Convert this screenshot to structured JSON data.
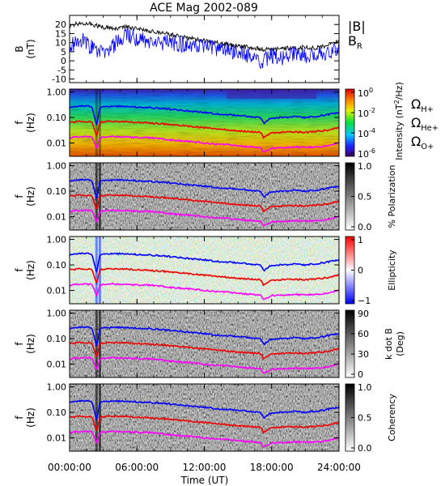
{
  "title": "ACE Mag 2002-089",
  "x_axis": {
    "label": "Time (UT)",
    "tick_labels": [
      "00:00:00",
      "06:00:00",
      "12:00:00",
      "18:00:00",
      "24:00:00"
    ],
    "tick_hours": [
      0,
      6,
      12,
      18,
      24
    ],
    "range_hours": [
      0,
      24
    ]
  },
  "chart_data": [
    {
      "type": "line",
      "ylabel_top": "B",
      "ylabel_bottom": "(nT)",
      "ylim": [
        -12,
        25
      ],
      "y_ticks": [
        20,
        15,
        10,
        5,
        0,
        -5,
        -10
      ],
      "y_tick_labels": [
        "20",
        "15",
        "10",
        "5",
        "0",
        "-5",
        "-10"
      ],
      "legend": [
        {
          "text": "|B|",
          "color": "#000000"
        },
        {
          "text": "B",
          "sub": "R",
          "color": "#0000ff"
        }
      ],
      "series": [
        {
          "name": "|B|",
          "color": "#000000",
          "x": [
            0,
            1,
            2,
            3,
            4,
            5,
            6,
            7,
            8,
            9,
            10,
            11,
            12,
            13,
            14,
            15,
            16,
            17,
            18,
            19,
            20,
            21,
            22,
            23,
            24
          ],
          "y": [
            19,
            21,
            20,
            18.5,
            18,
            18.5,
            17.5,
            16.5,
            15.5,
            14.5,
            13,
            12,
            11,
            10,
            9,
            8,
            7.5,
            6.5,
            6.5,
            7,
            7,
            7.5,
            7,
            8.5,
            11
          ]
        },
        {
          "name": "B_R",
          "color": "#0000ff",
          "x": [
            0,
            1,
            2,
            3,
            4,
            5,
            6,
            7,
            8,
            9,
            10,
            11,
            12,
            13,
            14,
            15,
            16,
            17,
            18,
            19,
            20,
            21,
            22,
            23,
            24
          ],
          "y": [
            8,
            12,
            7,
            4,
            9,
            14,
            12,
            11,
            10,
            10,
            9,
            8,
            8,
            7,
            6,
            5,
            3,
            -1,
            3,
            2,
            4,
            3,
            2,
            4,
            8
          ]
        }
      ]
    },
    {
      "type": "heatmap",
      "ylabel_top": "f",
      "ylabel_bottom": "(Hz)",
      "y_scale": "log",
      "ylim": [
        0.003,
        1.3
      ],
      "y_ticks": [
        1.0,
        0.1,
        0.01
      ],
      "y_tick_labels": [
        "1.00",
        "0.10",
        "0.01"
      ],
      "colorbar": {
        "label": "Intensity (nT²/Hz)",
        "label_parts": [
          "Intensity",
          "(nT",
          "2",
          "/Hz)"
        ],
        "scale": "log",
        "tick_labels": [
          {
            "base": "10",
            "exp": "0"
          },
          {
            "base": "10",
            "exp": "-2"
          },
          {
            "base": "10",
            "exp": "-4"
          },
          {
            "base": "10",
            "exp": "-6"
          }
        ],
        "colormap": "rainbow"
      },
      "legend": [
        {
          "text": "Ω",
          "sub": "H+",
          "color": "#0000ff"
        },
        {
          "text": "Ω",
          "sub": "He+",
          "color": "#ee0000"
        },
        {
          "text": "Ω",
          "sub": "O+",
          "color": "#ff00ff"
        }
      ]
    },
    {
      "type": "heatmap",
      "ylabel_top": "f",
      "ylabel_bottom": "(Hz)",
      "y_scale": "log",
      "ylim": [
        0.003,
        1.3
      ],
      "y_ticks": [
        1.0,
        0.1,
        0.01
      ],
      "y_tick_labels": [
        "1.00",
        "0.10",
        "0.01"
      ],
      "colorbar": {
        "label": "% Polarization",
        "range": [
          0,
          1
        ],
        "tick_labels": [
          "1.0",
          "0.5",
          "0.0"
        ],
        "colormap": "gray"
      }
    },
    {
      "type": "heatmap",
      "ylabel_top": "f",
      "ylabel_bottom": "(Hz)",
      "y_scale": "log",
      "ylim": [
        0.003,
        1.3
      ],
      "y_ticks": [
        1.0,
        0.1,
        0.01
      ],
      "y_tick_labels": [
        "1.00",
        "0.10",
        "0.01"
      ],
      "colorbar": {
        "label": "Ellipticity",
        "range": [
          -1,
          1
        ],
        "tick_labels": [
          "1",
          "0",
          "−1"
        ],
        "colormap": "blue-white-red"
      }
    },
    {
      "type": "heatmap",
      "ylabel_top": "f",
      "ylabel_bottom": "(Hz)",
      "y_scale": "log",
      "ylim": [
        0.003,
        1.3
      ],
      "y_ticks": [
        1.0,
        0.1,
        0.01
      ],
      "y_tick_labels": [
        "1.00",
        "0.10",
        "0.01"
      ],
      "colorbar": {
        "label_line1": "k dot B",
        "label_line2": "(Deg)",
        "range": [
          0,
          90
        ],
        "tick_labels": [
          "90",
          "60",
          "30",
          "0"
        ],
        "colormap": "gray"
      }
    },
    {
      "type": "heatmap",
      "ylabel_top": "f",
      "ylabel_bottom": "(Hz)",
      "y_scale": "log",
      "ylim": [
        0.003,
        1.3
      ],
      "y_ticks": [
        1.0,
        0.1,
        0.01
      ],
      "y_tick_labels": [
        "1.00",
        "0.10",
        "0.01"
      ],
      "colorbar": {
        "label": "Coherency",
        "range": [
          0,
          1
        ],
        "tick_labels": [
          "1.0",
          "0.5",
          "0.0"
        ],
        "colormap": "gray"
      }
    }
  ],
  "gyro_lines": [
    {
      "name": "Ω_H+",
      "color": "#0000ff",
      "x": [
        0,
        1,
        2,
        2.4,
        2.7,
        3,
        4,
        5,
        6,
        7,
        8,
        9,
        10,
        11,
        12,
        13,
        14,
        15,
        16,
        17,
        17.3,
        18,
        19,
        20,
        21,
        22,
        23,
        24
      ],
      "y": [
        0.25,
        0.28,
        0.27,
        0.05,
        0.24,
        0.27,
        0.28,
        0.27,
        0.26,
        0.25,
        0.23,
        0.21,
        0.19,
        0.17,
        0.16,
        0.14,
        0.13,
        0.12,
        0.11,
        0.1,
        0.06,
        0.1,
        0.1,
        0.11,
        0.1,
        0.11,
        0.13,
        0.16
      ]
    },
    {
      "name": "Ω_He+",
      "color": "#ee0000",
      "x": [
        0,
        1,
        2,
        2.4,
        2.7,
        3,
        4,
        5,
        6,
        7,
        8,
        9,
        10,
        11,
        12,
        13,
        14,
        15,
        16,
        17,
        17.3,
        18,
        19,
        20,
        21,
        22,
        23,
        24
      ],
      "y": [
        0.065,
        0.07,
        0.068,
        0.02,
        0.062,
        0.068,
        0.07,
        0.068,
        0.065,
        0.062,
        0.058,
        0.053,
        0.048,
        0.044,
        0.04,
        0.036,
        0.033,
        0.03,
        0.028,
        0.026,
        0.016,
        0.025,
        0.026,
        0.028,
        0.026,
        0.028,
        0.032,
        0.04
      ]
    },
    {
      "name": "Ω_O+",
      "color": "#ff00ff",
      "x": [
        0,
        1,
        2,
        2.4,
        2.7,
        3,
        4,
        5,
        6,
        7,
        8,
        9,
        10,
        11,
        12,
        13,
        14,
        15,
        16,
        17,
        17.3,
        18,
        19,
        20,
        21,
        22,
        23,
        24
      ],
      "y": [
        0.016,
        0.018,
        0.017,
        0.006,
        0.016,
        0.017,
        0.018,
        0.017,
        0.016,
        0.016,
        0.015,
        0.013,
        0.012,
        0.011,
        0.01,
        0.009,
        0.0085,
        0.0078,
        0.0072,
        0.0066,
        0.0045,
        0.0064,
        0.0066,
        0.007,
        0.0066,
        0.007,
        0.008,
        0.01
      ]
    }
  ],
  "colors": {
    "axis": "#000000",
    "blue": "#0000ff",
    "red": "#ee0000",
    "magenta": "#ff00ff"
  }
}
